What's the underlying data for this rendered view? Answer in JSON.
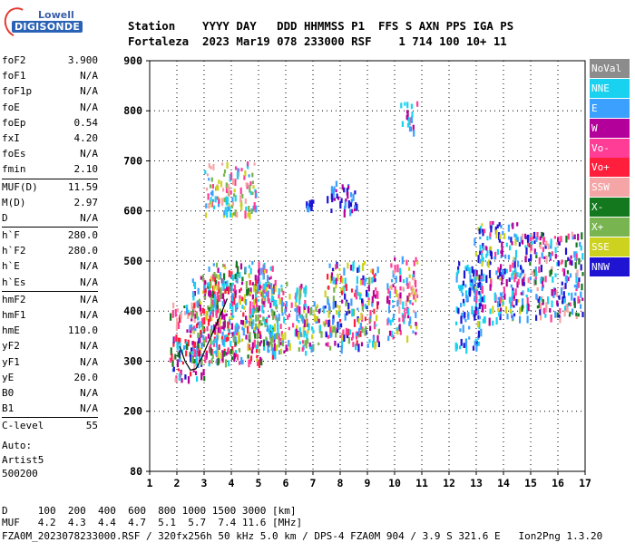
{
  "logo": {
    "line1": "Lowell",
    "line2": "DIGISONDE"
  },
  "header": {
    "line1": "Station    YYYY DAY   DDD HHMMSS P1  FFS S AXN PPS IGA PS",
    "line2": "Fortaleza  2023 Mar19 078 233000 RSF    1 714 100 10+ 11"
  },
  "params": [
    [
      {
        "name": "foF2",
        "value": "3.900"
      },
      {
        "name": "foF1",
        "value": "N/A"
      },
      {
        "name": "foF1p",
        "value": "N/A"
      },
      {
        "name": "foE",
        "value": "N/A"
      },
      {
        "name": "foEp",
        "value": "0.54"
      },
      {
        "name": "fxI",
        "value": "4.20"
      },
      {
        "name": "foEs",
        "value": "N/A"
      },
      {
        "name": "fmin",
        "value": "2.10"
      }
    ],
    [
      {
        "name": "MUF(D)",
        "value": "11.59"
      },
      {
        "name": "M(D)",
        "value": "2.97"
      },
      {
        "name": "D",
        "value": "N/A"
      }
    ],
    [
      {
        "name": "h`F",
        "value": "280.0"
      },
      {
        "name": "h`F2",
        "value": "280.0"
      },
      {
        "name": "h`E",
        "value": "N/A"
      },
      {
        "name": "h`Es",
        "value": "N/A"
      }
    ],
    [
      {
        "name": "hmF2",
        "value": "N/A"
      },
      {
        "name": "hmF1",
        "value": "N/A"
      },
      {
        "name": "hmE",
        "value": "110.0"
      },
      {
        "name": "yF2",
        "value": "N/A"
      },
      {
        "name": "yF1",
        "value": "N/A"
      },
      {
        "name": "yE",
        "value": "20.0"
      },
      {
        "name": "B0",
        "value": "N/A"
      },
      {
        "name": "B1",
        "value": "N/A"
      }
    ],
    [
      {
        "name": "C-level",
        "value": "55"
      }
    ]
  ],
  "auto": {
    "line1": "Auto:",
    "line2": "Artist5",
    "line3": "500200"
  },
  "legend": [
    {
      "label": "NoVal",
      "color": "#8c8c8c"
    },
    {
      "label": "NNE",
      "color": "#19d2f0"
    },
    {
      "label": "E",
      "color": "#3ca0ff"
    },
    {
      "label": "W",
      "color": "#b4009b"
    },
    {
      "label": "Vo-",
      "color": "#ff3c96"
    },
    {
      "label": "Vo+",
      "color": "#ff1e3c"
    },
    {
      "label": "SSW",
      "color": "#f5a5a5"
    },
    {
      "label": "X-",
      "color": "#14781e"
    },
    {
      "label": "X+",
      "color": "#78b450"
    },
    {
      "label": "SSE",
      "color": "#cdd21e"
    },
    {
      "label": "NNW",
      "color": "#1e14d2"
    }
  ],
  "footer": {
    "line1": "D     100  200  400  600  800 1000 1500 3000 [km]",
    "line2": "MUF   4.2  4.3  4.4  4.7  5.1  5.7  7.4 11.6 [MHz]",
    "line3": "FZA0M_2023078233000.RSF / 320fx256h 50 kHz 5.0 km / DPS-4 FZA0M 904 / 3.9 S 321.6 E   Ion2Png 1.3.20"
  },
  "chart_data": {
    "type": "scatter",
    "title": "",
    "xlabel": "",
    "ylabel": "",
    "xlim": [
      1,
      17
    ],
    "ylim": [
      80,
      900
    ],
    "x_ticks": [
      1,
      2,
      3,
      4,
      5,
      6,
      7,
      8,
      9,
      10,
      11,
      12,
      13,
      14,
      15,
      16,
      17
    ],
    "y_ticks": [
      80,
      200,
      300,
      400,
      500,
      600,
      700,
      800,
      900
    ],
    "grid": "dotted",
    "trace": [
      [
        2.1,
        330
      ],
      [
        2.3,
        300
      ],
      [
        2.5,
        282
      ],
      [
        2.7,
        285
      ],
      [
        2.9,
        305
      ],
      [
        3.1,
        330
      ],
      [
        3.3,
        355
      ],
      [
        3.5,
        380
      ],
      [
        3.7,
        405
      ],
      [
        3.85,
        425
      ]
    ],
    "clusters": [
      {
        "x": [
          1.7,
          3.0
        ],
        "y": [
          265,
          420
        ],
        "colors": [
          "E",
          "NNE",
          "Vo-",
          "X-",
          "W",
          "Vo+",
          "SSW",
          "NNW"
        ]
      },
      {
        "x": [
          2.5,
          4.2
        ],
        "y": [
          300,
          480
        ],
        "colors": [
          "E",
          "NNE",
          "Vo-",
          "W",
          "Vo+",
          "SSE",
          "X+"
        ]
      },
      {
        "x": [
          3.0,
          5.6
        ],
        "y": [
          300,
          500
        ],
        "colors": [
          "E",
          "NNE",
          "SSE",
          "X+",
          "W",
          "Vo-",
          "Vo+",
          "X-"
        ]
      },
      {
        "x": [
          4.6,
          6.8
        ],
        "y": [
          320,
          460
        ],
        "colors": [
          "SSE",
          "X+",
          "E",
          "NNE",
          "W",
          "Vo-"
        ]
      },
      {
        "x": [
          6.6,
          7.4
        ],
        "y": [
          330,
          420
        ],
        "colors": [
          "SSE",
          "X+",
          "NNE",
          "E",
          "W"
        ]
      },
      {
        "x": [
          7.4,
          9.4
        ],
        "y": [
          330,
          500
        ],
        "colors": [
          "SSE",
          "X+",
          "E",
          "W",
          "Vo-",
          "Vo+",
          "NNE",
          "NNW"
        ]
      },
      {
        "x": [
          9.7,
          10.8
        ],
        "y": [
          350,
          510
        ],
        "colors": [
          "SSW",
          "Vo-",
          "E",
          "NNE",
          "SSE",
          "W"
        ]
      },
      {
        "x": [
          12.2,
          13.2
        ],
        "y": [
          330,
          500
        ],
        "colors": [
          "NNW",
          "E",
          "NNE"
        ]
      },
      {
        "x": [
          12.9,
          14.6
        ],
        "y": [
          380,
          580
        ],
        "colors": [
          "NNW",
          "E",
          "NNE",
          "W",
          "Vo-",
          "SSE"
        ]
      },
      {
        "x": [
          14.6,
          16.9
        ],
        "y": [
          390,
          560
        ],
        "colors": [
          "NNW",
          "E",
          "NNE",
          "W",
          "Vo-",
          "SSW",
          "X-"
        ]
      },
      {
        "x": [
          3.0,
          4.9
        ],
        "y": [
          595,
          700
        ],
        "colors": [
          "SSE",
          "X+",
          "NNE",
          "E",
          "Vo-",
          "SSW"
        ]
      },
      {
        "x": [
          7.5,
          8.6
        ],
        "y": [
          600,
          660
        ],
        "colors": [
          "NNW",
          "W",
          "E"
        ]
      },
      {
        "x": [
          6.7,
          7.0
        ],
        "y": [
          610,
          625
        ],
        "colors": [
          "NNW",
          "E"
        ]
      },
      {
        "x": [
          10.2,
          10.8
        ],
        "y": [
          760,
          820
        ],
        "colors": [
          "E",
          "W",
          "NNE",
          "Vo-"
        ]
      }
    ]
  }
}
